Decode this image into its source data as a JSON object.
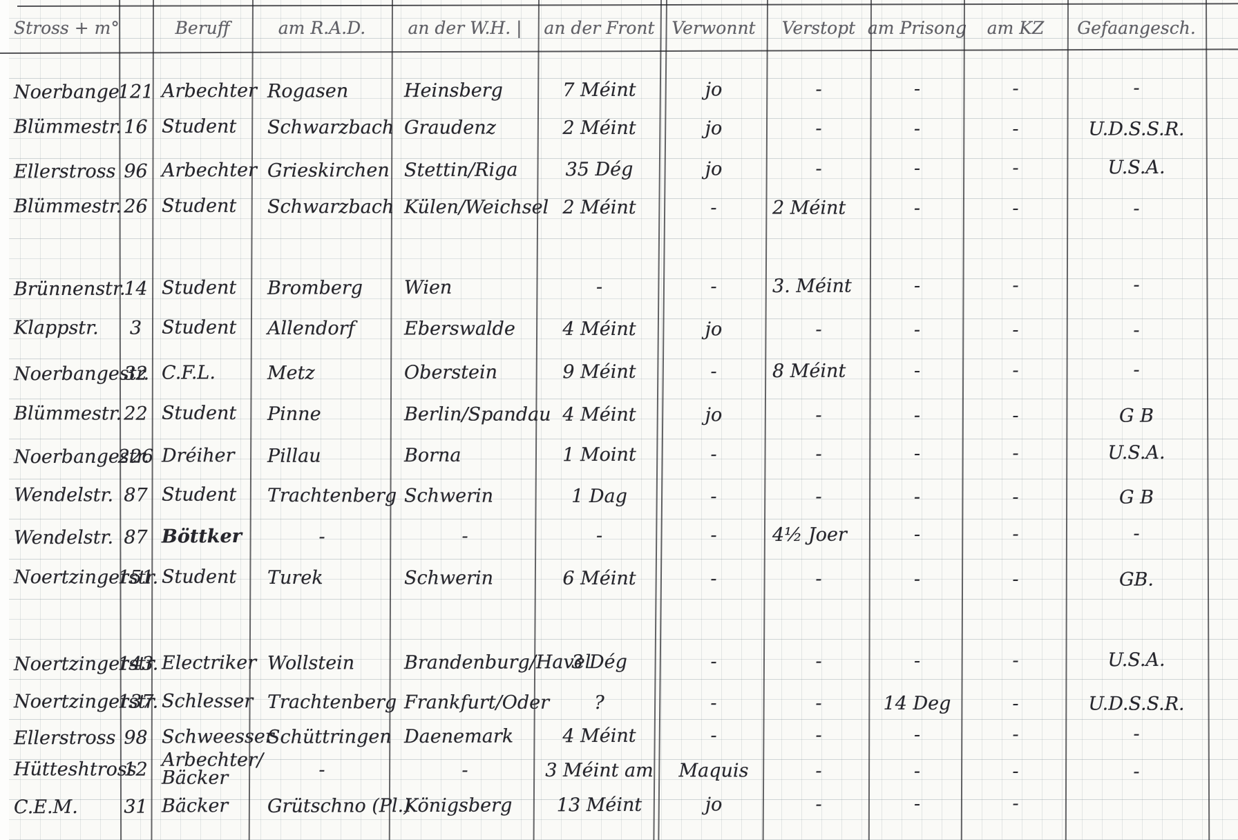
{
  "colors": {
    "paper": "#fafaf7",
    "ink": "#26262c",
    "grid": "#94a3a8"
  },
  "table": {
    "columns": [
      {
        "key": "street",
        "label": "Stross + m°"
      },
      {
        "key": "no",
        "label": ""
      },
      {
        "key": "beruff",
        "label": "Beruff"
      },
      {
        "key": "rad",
        "label": "am R.A.D."
      },
      {
        "key": "wh",
        "label": "an der W.H.  |"
      },
      {
        "key": "front",
        "label": "an der Front"
      },
      {
        "key": "verwonnt",
        "label": "Verwonnt"
      },
      {
        "key": "verstopt",
        "label": "Verstopt"
      },
      {
        "key": "prisong",
        "label": "am Prisong"
      },
      {
        "key": "kz",
        "label": "am KZ"
      },
      {
        "key": "gef",
        "label": "Gefaangesch."
      }
    ],
    "rows": [
      {
        "street": "Noerbange",
        "no": "121",
        "beruff": "Arbechter",
        "rad": "Rogasen",
        "wh": "Heinsberg",
        "front": "7 Méint",
        "verwonnt": "jo",
        "verstopt": "-",
        "prisong": "-",
        "kz": "-",
        "gef": "-"
      },
      {
        "street": "Blümmestr.",
        "no": "16",
        "beruff": "Student",
        "rad": "Schwarzbach",
        "wh": "Graudenz",
        "front": "2 Méint",
        "verwonnt": "jo",
        "verstopt": "-",
        "prisong": "-",
        "kz": "-",
        "gef": "U.D.S.S.R."
      },
      {
        "street": "Ellerstross",
        "no": "96",
        "beruff": "Arbechter",
        "rad": "Grieskirchen",
        "wh": "Stettin/Riga",
        "front": "35 Dég",
        "verwonnt": "jo",
        "verstopt": "-",
        "prisong": "-",
        "kz": "-",
        "gef": "U.S.A."
      },
      {
        "street": "Blümmestr.",
        "no": "26",
        "beruff": "Student",
        "rad": "Schwarzbach",
        "wh": "Külen/Weichsel",
        "front": "2 Méint",
        "verwonnt": "-",
        "verstopt": "2 Méint",
        "prisong": "-",
        "kz": "-",
        "gef": "-"
      },
      {
        "street": "Brünnenstr.",
        "no": "14",
        "beruff": "Student",
        "rad": "Bromberg",
        "wh": "Wien",
        "front": "-",
        "verwonnt": "-",
        "verstopt": "3. Méint",
        "prisong": "-",
        "kz": "-",
        "gef": "-"
      },
      {
        "street": "Klappstr.",
        "no": "3",
        "beruff": "Student",
        "rad": "Allendorf",
        "wh": "Eberswalde",
        "front": "4 Méint",
        "verwonnt": "jo",
        "verstopt": "-",
        "prisong": "-",
        "kz": "-",
        "gef": "-"
      },
      {
        "street": "Noerbangestr.",
        "no": "32",
        "beruff": "C.F.L.",
        "rad": "Metz",
        "wh": "Oberstein",
        "front": "9 Méint",
        "verwonnt": "-",
        "verstopt": "8 Méint",
        "prisong": "-",
        "kz": "-",
        "gef": "-"
      },
      {
        "street": "Blümmestr.",
        "no": "22",
        "beruff": "Student",
        "rad": "Pinne",
        "wh": "Berlin/Spandau",
        "front": "4 Méint",
        "verwonnt": "jo",
        "verstopt": "-",
        "prisong": "-",
        "kz": "-",
        "gef": "G B"
      },
      {
        "street": "Noerbangestr.",
        "no": "226",
        "beruff": "Dréiher",
        "rad": "Pillau",
        "wh": "Borna",
        "front": "1 Moint",
        "verwonnt": "-",
        "verstopt": "-",
        "prisong": "-",
        "kz": "-",
        "gef": "U.S.A."
      },
      {
        "street": "Wendelstr.",
        "no": "87",
        "beruff": "Student",
        "rad": "Trachtenberg",
        "wh": "Schwerin",
        "front": "1 Dag",
        "verwonnt": "-",
        "verstopt": "-",
        "prisong": "-",
        "kz": "-",
        "gef": "G B"
      },
      {
        "street": "Wendelstr.",
        "no": "87",
        "beruff": "Böttker",
        "rad": "-",
        "wh": "-",
        "front": "-",
        "verwonnt": "-",
        "verstopt": "4½ Joer",
        "prisong": "-",
        "kz": "-",
        "gef": "-"
      },
      {
        "street": "Noertzingerstr.",
        "no": "151",
        "beruff": "Student",
        "rad": "Turek",
        "wh": "Schwerin",
        "front": "6 Méint",
        "verwonnt": "-",
        "verstopt": "-",
        "prisong": "-",
        "kz": "-",
        "gef": "GB."
      },
      {
        "street": "Noertzingerstr.",
        "no": "143",
        "beruff": "Electriker",
        "rad": "Wollstein",
        "wh": "Brandenburg/Havel",
        "front": "3 Dég",
        "verwonnt": "-",
        "verstopt": "-",
        "prisong": "-",
        "kz": "-",
        "gef": "U.S.A."
      },
      {
        "street": "Noertzingerstr.",
        "no": "137",
        "beruff": "Schlesser",
        "rad": "Trachtenberg",
        "wh": "Frankfurt/Oder",
        "front": "?",
        "verwonnt": "-",
        "verstopt": "-",
        "prisong": "14 Deg",
        "kz": "-",
        "gef": "U.D.S.S.R."
      },
      {
        "street": "Ellerstross",
        "no": "98",
        "beruff": "Schweesser",
        "rad": "Schüttringen",
        "wh": "Daenemark",
        "front": "4 Méint",
        "verwonnt": "-",
        "verstopt": "-",
        "prisong": "-",
        "kz": "-",
        "gef": "-"
      },
      {
        "street": "Hütteshtross",
        "no": "12",
        "beruff": "Arbechter/ Bäcker",
        "rad": "-",
        "wh": "-",
        "front": "3 Méint  am",
        "verwonnt": "Maquis",
        "verstopt": "-",
        "prisong": "-",
        "kz": "-",
        "gef": "-"
      },
      {
        "street": "C.E.M.",
        "no": "31",
        "beruff": "Bäcker",
        "rad": "Grütschno (Pl.)",
        "wh": "Königsberg",
        "front": "13 Méint",
        "verwonnt": "jo",
        "verstopt": "-",
        "prisong": "-",
        "kz": "-",
        "gef": ""
      }
    ]
  }
}
